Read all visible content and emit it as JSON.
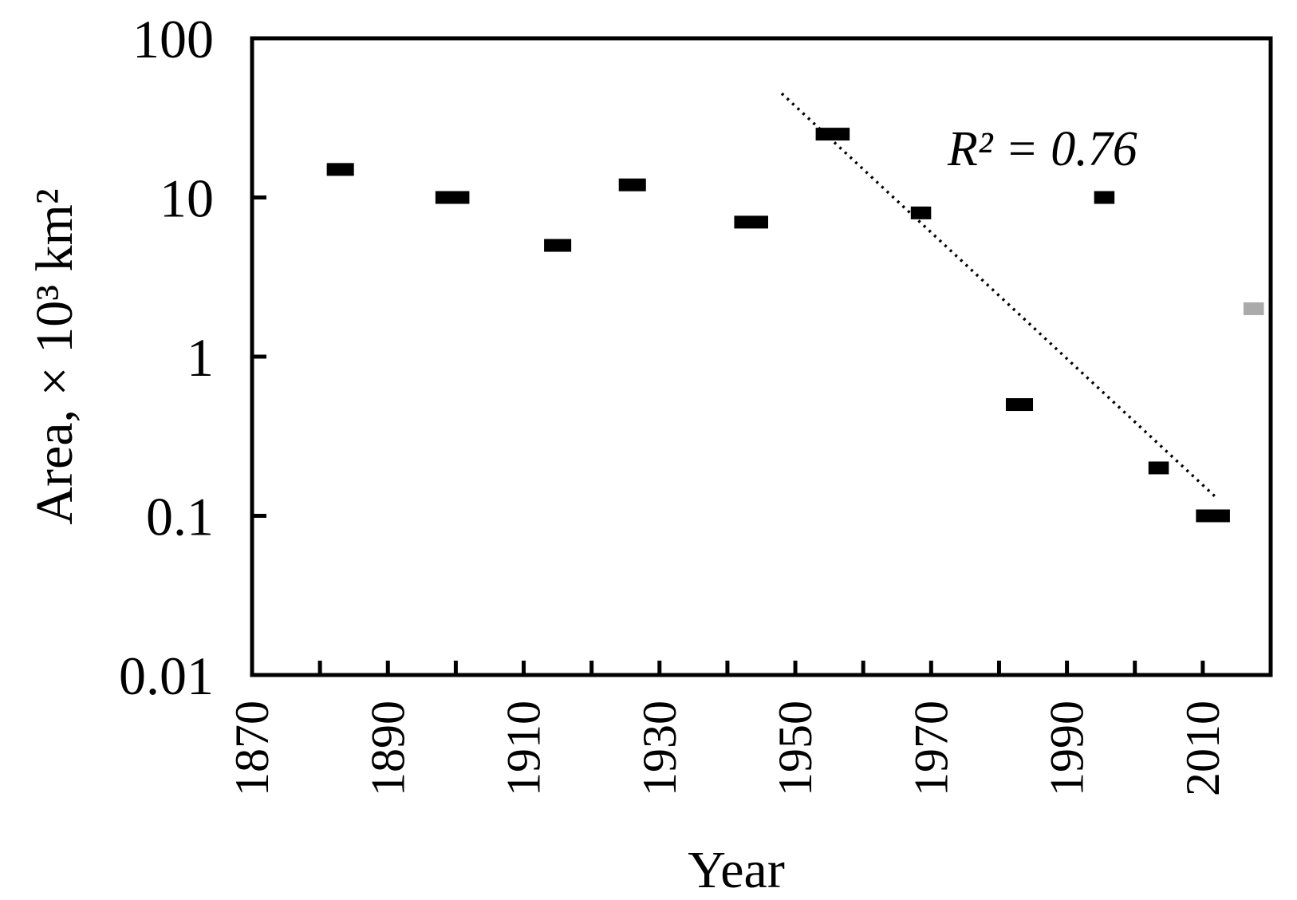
{
  "chart_data": {
    "type": "scatter",
    "xlabel": "Year",
    "ylabel": "Area, × 10³ km²",
    "xlim": [
      1870,
      2020
    ],
    "ylim": [
      0.01,
      100
    ],
    "yscale": "log",
    "xticks": [
      "1870",
      "1890",
      "1910",
      "1930",
      "1950",
      "1970",
      "1990",
      "2010"
    ],
    "yticks": [
      "100",
      "10",
      "1",
      "0.1",
      "0.01"
    ],
    "grid": false,
    "series": [
      {
        "color": "#000000",
        "points": [
          {
            "x": 1881,
            "x_end": 1885,
            "y": 15
          },
          {
            "x": 1897,
            "x_end": 1902,
            "y": 10
          },
          {
            "x": 1913,
            "x_end": 1917,
            "y": 5
          },
          {
            "x": 1924,
            "x_end": 1928,
            "y": 12
          },
          {
            "x": 1941,
            "x_end": 1946,
            "y": 7
          },
          {
            "x": 1953,
            "x_end": 1958,
            "y": 25
          },
          {
            "x": 1967,
            "x_end": 1970,
            "y": 8
          },
          {
            "x": 1981,
            "x_end": 1985,
            "y": 0.5
          },
          {
            "x": 1994,
            "x_end": 1997,
            "y": 10
          },
          {
            "x": 2002,
            "x_end": 2005,
            "y": 0.2
          },
          {
            "x": 2009,
            "x_end": 2014,
            "y": 0.1
          }
        ]
      },
      {
        "color": "#aaaaaa",
        "points": [
          {
            "x": 2016,
            "x_end": 2019,
            "y": 2
          }
        ]
      }
    ],
    "trendline": {
      "style": "dotted",
      "color": "#000000",
      "x": [
        1948,
        2012
      ],
      "y": [
        45,
        0.13
      ]
    },
    "annotation": "R² = 0.76"
  }
}
